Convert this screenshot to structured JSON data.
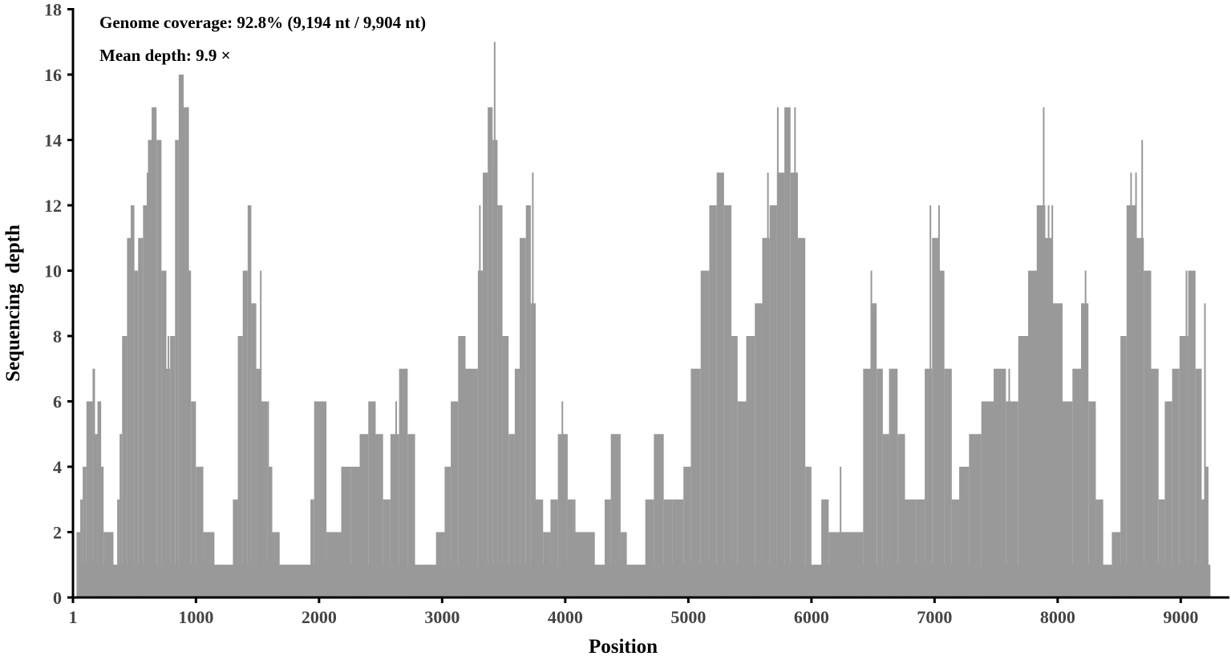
{
  "chart_data": {
    "type": "area",
    "subtype": "step-coverage-profile",
    "title": "",
    "annotations": [
      "Genome coverage: 92.8% (9,194 nt / 9,904 nt)",
      "Mean depth: 9.9 ×"
    ],
    "xlabel": "Position",
    "ylabel": "Sequencing  depth",
    "xlim": [
      1,
      9380
    ],
    "ylim": [
      0,
      18
    ],
    "x_ticks": [
      1,
      1000,
      2000,
      3000,
      4000,
      5000,
      6000,
      7000,
      8000,
      9000
    ],
    "y_ticks": [
      0,
      2,
      4,
      6,
      8,
      10,
      12,
      14,
      16,
      18
    ],
    "grid": false,
    "legend": null,
    "fill_color": "#999999",
    "axis_color": "#000000",
    "tick_label_color": "#444444",
    "series": [
      {
        "name": "Sequencing depth",
        "segments_note": "[start_position, end_position, depth]",
        "segments": [
          [
            30,
            60,
            2
          ],
          [
            60,
            80,
            3
          ],
          [
            80,
            110,
            4
          ],
          [
            110,
            160,
            6
          ],
          [
            160,
            180,
            7
          ],
          [
            180,
            200,
            5
          ],
          [
            200,
            230,
            6
          ],
          [
            200,
            250,
            4
          ],
          [
            250,
            330,
            2
          ],
          [
            330,
            360,
            1
          ],
          [
            360,
            380,
            3
          ],
          [
            380,
            400,
            5
          ],
          [
            400,
            440,
            8
          ],
          [
            440,
            470,
            11
          ],
          [
            470,
            500,
            12
          ],
          [
            500,
            530,
            10
          ],
          [
            530,
            570,
            11
          ],
          [
            570,
            610,
            12
          ],
          [
            610,
            650,
            14
          ],
          [
            650,
            680,
            15
          ],
          [
            680,
            720,
            14
          ],
          [
            720,
            760,
            10
          ],
          [
            760,
            790,
            7
          ],
          [
            790,
            830,
            8
          ],
          [
            830,
            860,
            14
          ],
          [
            860,
            900,
            16
          ],
          [
            900,
            940,
            15
          ],
          [
            940,
            960,
            10
          ],
          [
            960,
            1000,
            6
          ],
          [
            1000,
            1060,
            4
          ],
          [
            1060,
            1150,
            2
          ],
          [
            1150,
            1300,
            1
          ],
          [
            1300,
            1340,
            3
          ],
          [
            1340,
            1380,
            8
          ],
          [
            1380,
            1420,
            10
          ],
          [
            1420,
            1450,
            12
          ],
          [
            1450,
            1490,
            9
          ],
          [
            1490,
            1530,
            7
          ],
          [
            1530,
            1580,
            6
          ],
          [
            1580,
            1620,
            4
          ],
          [
            1620,
            1680,
            2
          ],
          [
            1680,
            1930,
            1
          ],
          [
            1930,
            1960,
            3
          ],
          [
            1960,
            2060,
            6
          ],
          [
            2060,
            2180,
            2
          ],
          [
            2180,
            2260,
            4
          ],
          [
            2260,
            2330,
            4
          ],
          [
            2330,
            2400,
            5
          ],
          [
            2400,
            2460,
            6
          ],
          [
            2460,
            2520,
            5
          ],
          [
            2520,
            2580,
            3
          ],
          [
            2580,
            2650,
            5
          ],
          [
            2650,
            2720,
            7
          ],
          [
            2720,
            2780,
            5
          ],
          [
            2780,
            2950,
            1
          ],
          [
            2950,
            3020,
            2
          ],
          [
            3020,
            3070,
            4
          ],
          [
            3070,
            3130,
            6
          ],
          [
            3130,
            3190,
            8
          ],
          [
            3190,
            3290,
            7
          ],
          [
            3290,
            3330,
            10
          ],
          [
            3330,
            3370,
            13
          ],
          [
            3370,
            3410,
            15
          ],
          [
            3410,
            3450,
            14
          ],
          [
            3450,
            3490,
            12
          ],
          [
            3490,
            3540,
            8
          ],
          [
            3540,
            3590,
            5
          ],
          [
            3590,
            3630,
            7
          ],
          [
            3630,
            3680,
            11
          ],
          [
            3680,
            3720,
            12
          ],
          [
            3720,
            3760,
            9
          ],
          [
            3760,
            3820,
            3
          ],
          [
            3820,
            3880,
            2
          ],
          [
            3880,
            3940,
            3
          ],
          [
            3940,
            4020,
            5
          ],
          [
            4020,
            4070,
            3
          ],
          [
            4070,
            4240,
            2
          ],
          [
            4240,
            4320,
            1
          ],
          [
            4320,
            4370,
            3
          ],
          [
            4370,
            4450,
            5
          ],
          [
            4450,
            4500,
            2
          ],
          [
            4500,
            4650,
            1
          ],
          [
            4650,
            4720,
            3
          ],
          [
            4720,
            4800,
            5
          ],
          [
            4800,
            4870,
            3
          ],
          [
            4870,
            4960,
            3
          ],
          [
            4960,
            5020,
            4
          ],
          [
            5020,
            5100,
            7
          ],
          [
            5100,
            5170,
            10
          ],
          [
            5170,
            5230,
            12
          ],
          [
            5230,
            5290,
            13
          ],
          [
            5290,
            5350,
            12
          ],
          [
            5350,
            5400,
            8
          ],
          [
            5400,
            5470,
            6
          ],
          [
            5470,
            5540,
            8
          ],
          [
            5540,
            5600,
            9
          ],
          [
            5600,
            5660,
            11
          ],
          [
            5660,
            5720,
            12
          ],
          [
            5720,
            5780,
            13
          ],
          [
            5780,
            5830,
            15
          ],
          [
            5830,
            5890,
            13
          ],
          [
            5890,
            5950,
            11
          ],
          [
            5950,
            6000,
            4
          ],
          [
            6000,
            6080,
            1
          ],
          [
            6080,
            6140,
            3
          ],
          [
            6140,
            6420,
            2
          ],
          [
            6420,
            6480,
            7
          ],
          [
            6480,
            6530,
            9
          ],
          [
            6530,
            6580,
            7
          ],
          [
            6580,
            6630,
            5
          ],
          [
            6630,
            6700,
            7
          ],
          [
            6700,
            6760,
            5
          ],
          [
            6760,
            6850,
            3
          ],
          [
            6850,
            6920,
            3
          ],
          [
            6920,
            6980,
            7
          ],
          [
            6980,
            7030,
            11
          ],
          [
            7030,
            7080,
            10
          ],
          [
            7080,
            7140,
            7
          ],
          [
            7140,
            7200,
            3
          ],
          [
            7200,
            7280,
            4
          ],
          [
            7280,
            7380,
            5
          ],
          [
            7380,
            7480,
            6
          ],
          [
            7480,
            7580,
            7
          ],
          [
            7580,
            7680,
            6
          ],
          [
            7680,
            7760,
            8
          ],
          [
            7760,
            7840,
            10
          ],
          [
            7840,
            7900,
            12
          ],
          [
            7900,
            7960,
            11
          ],
          [
            7960,
            8040,
            9
          ],
          [
            8040,
            8120,
            6
          ],
          [
            8120,
            8190,
            7
          ],
          [
            8190,
            8250,
            9
          ],
          [
            8250,
            8310,
            6
          ],
          [
            8310,
            8370,
            3
          ],
          [
            8370,
            8440,
            1
          ],
          [
            8440,
            8510,
            2
          ],
          [
            8510,
            8560,
            8
          ],
          [
            8560,
            8640,
            12
          ],
          [
            8640,
            8700,
            11
          ],
          [
            8700,
            8760,
            10
          ],
          [
            8760,
            8820,
            7
          ],
          [
            8820,
            8870,
            3
          ],
          [
            8870,
            8930,
            6
          ],
          [
            8930,
            8990,
            7
          ],
          [
            8990,
            9060,
            8
          ],
          [
            9060,
            9120,
            10
          ],
          [
            9120,
            9170,
            7
          ],
          [
            9170,
            9200,
            3
          ],
          [
            9200,
            9225,
            4
          ],
          [
            9225,
            9240,
            1
          ]
        ],
        "spikes_note": "[position, depth] narrow peaks visible above the step profile",
        "spikes": [
          [
            640,
            15
          ],
          [
            600,
            13
          ],
          [
            870,
            16
          ],
          [
            930,
            15
          ],
          [
            770,
            8
          ],
          [
            1430,
            12
          ],
          [
            1520,
            10
          ],
          [
            1580,
            6
          ],
          [
            2620,
            6
          ],
          [
            2700,
            7
          ],
          [
            3420,
            17
          ],
          [
            3300,
            12
          ],
          [
            3730,
            13
          ],
          [
            3970,
            6
          ],
          [
            4070,
            3
          ],
          [
            5240,
            13
          ],
          [
            5640,
            13
          ],
          [
            5720,
            15
          ],
          [
            5860,
            15
          ],
          [
            5330,
            12
          ],
          [
            6480,
            10
          ],
          [
            6960,
            12
          ],
          [
            7030,
            12
          ],
          [
            7600,
            7
          ],
          [
            7880,
            15
          ],
          [
            7920,
            12
          ],
          [
            7950,
            12
          ],
          [
            7830,
            12
          ],
          [
            8220,
            10
          ],
          [
            8590,
            13
          ],
          [
            8680,
            14
          ],
          [
            8630,
            13
          ],
          [
            9040,
            10
          ],
          [
            9190,
            9
          ],
          [
            6230,
            4
          ]
        ]
      }
    ]
  },
  "plot": {
    "annotation_line1": "Genome coverage: 92.8% (9,194 nt / 9,904 nt)",
    "annotation_line2": "Mean depth: 9.9 ×",
    "xlabel": "Position",
    "ylabel": "Sequencing  depth"
  }
}
